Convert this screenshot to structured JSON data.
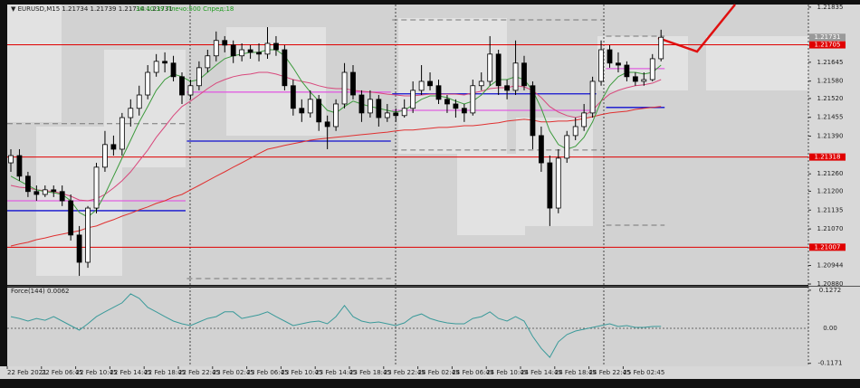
{
  "chart_data": {
    "type": "candlestick",
    "header": "▼ EURUSD,M15  1.21734 1.21739 1.21714 1.21731",
    "status": "36:40:39 Плечо:500 Спред:18",
    "categories": [
      "22 Feb 2021",
      null,
      null,
      null,
      "22 Feb 06:45",
      null,
      null,
      null,
      "22 Feb 10:45",
      null,
      null,
      null,
      "22 Feb 14:45",
      null,
      null,
      null,
      "22 Feb 18:45",
      null,
      null,
      null,
      "22 Feb 22:45",
      null,
      null,
      null,
      "23 Feb 02:45",
      null,
      null,
      null,
      "23 Feb 06:45",
      null,
      null,
      null,
      "23 Feb 10:45",
      null,
      null,
      null,
      "23 Feb 14:45",
      null,
      null,
      null,
      "23 Feb 18:45",
      null,
      null,
      null,
      "23 Feb 22:45",
      null,
      null,
      null,
      "24 Feb 02:45",
      null,
      null,
      null,
      "24 Feb 06:45",
      null,
      null,
      null,
      "24 Feb 10:45",
      null,
      null,
      null,
      "24 Feb 14:45",
      null,
      null,
      null,
      "24 Feb 18:45",
      null,
      null,
      null,
      "24 Feb 22:45",
      null,
      null,
      null,
      "25 Feb 02:45",
      null,
      null,
      null,
      null
    ],
    "open": [
      1.21298,
      1.21323,
      1.21252,
      1.21199,
      1.21189,
      1.21205,
      1.21199,
      1.21167,
      1.21049,
      1.20955,
      1.21142,
      1.21283,
      1.21361,
      1.21345,
      1.21454,
      1.21486,
      1.21532,
      1.2161,
      1.21648,
      1.21642,
      1.21595,
      1.21532,
      1.21564,
      1.21626,
      1.21667,
      1.2172,
      1.21704,
      1.21667,
      1.21688,
      1.21679,
      1.21673,
      1.2171,
      1.21688,
      1.21564,
      1.21486,
      1.2147,
      1.21517,
      1.21439,
      1.21423,
      1.21501,
      1.2161,
      1.21532,
      1.2147,
      1.21517,
      1.21454,
      1.2147,
      1.21461,
      1.21486,
      1.21548,
      1.21579,
      1.21564,
      1.21517,
      1.21501,
      1.21486,
      1.2147,
      1.21564,
      1.21579,
      1.21673,
      1.21564,
      1.21548,
      1.21642,
      1.21564,
      1.21392,
      1.21298,
      1.21142,
      1.21314,
      1.21392,
      1.21423,
      1.2147,
      1.21579,
      1.21688,
      1.21642,
      1.21635,
      1.21595,
      1.21579,
      1.21585,
      1.21657
    ],
    "high": [
      1.21345,
      1.21345,
      1.21267,
      1.2122,
      1.2122,
      1.2122,
      1.2122,
      1.21189,
      1.2108,
      1.21149,
      1.21298,
      1.21408,
      1.21392,
      1.2147,
      1.21517,
      1.21564,
      1.21635,
      1.21673,
      1.21679,
      1.21667,
      1.2161,
      1.21585,
      1.21648,
      1.21688,
      1.21751,
      1.21735,
      1.2172,
      1.2171,
      1.21704,
      1.2171,
      1.21766,
      1.21735,
      1.21704,
      1.21585,
      1.21517,
      1.21548,
      1.21532,
      1.21461,
      1.21517,
      1.21642,
      1.21635,
      1.21548,
      1.21548,
      1.21532,
      1.21501,
      1.21486,
      1.21517,
      1.21579,
      1.21635,
      1.2161,
      1.21585,
      1.21532,
      1.21517,
      1.21501,
      1.21585,
      1.2161,
      1.21735,
      1.21688,
      1.21585,
      1.2172,
      1.21667,
      1.21579,
      1.21423,
      1.21323,
      1.21345,
      1.21408,
      1.21454,
      1.21501,
      1.21595,
      1.2172,
      1.21704,
      1.21679,
      1.21648,
      1.2161,
      1.2161,
      1.21673,
      1.21757
    ],
    "low": [
      1.21267,
      1.21236,
      1.2118,
      1.21167,
      1.2118,
      1.2118,
      1.21149,
      1.2103,
      1.20908,
      1.20936,
      1.21124,
      1.21267,
      1.21323,
      1.21323,
      1.21423,
      1.21461,
      1.21517,
      1.21595,
      1.2161,
      1.21579,
      1.21501,
      1.21517,
      1.21548,
      1.2161,
      1.21648,
      1.21679,
      1.21642,
      1.21648,
      1.21657,
      1.21648,
      1.21657,
      1.21667,
      1.21548,
      1.21461,
      1.21439,
      1.21454,
      1.21408,
      1.21345,
      1.21408,
      1.21486,
      1.21517,
      1.21439,
      1.21454,
      1.21423,
      1.21439,
      1.21439,
      1.21454,
      1.2147,
      1.21532,
      1.21548,
      1.21501,
      1.2147,
      1.21454,
      1.21439,
      1.21461,
      1.21548,
      1.21564,
      1.21532,
      1.21517,
      1.21532,
      1.21548,
      1.21345,
      1.21267,
      1.2108,
      1.21124,
      1.21298,
      1.21376,
      1.21408,
      1.21454,
      1.21564,
      1.21626,
      1.2161,
      1.21579,
      1.21564,
      1.21564,
      1.21579,
      1.21648
    ],
    "close": [
      1.21323,
      1.21252,
      1.21199,
      1.21189,
      1.21205,
      1.21199,
      1.21167,
      1.21049,
      1.20955,
      1.21142,
      1.21283,
      1.21361,
      1.21345,
      1.21454,
      1.21486,
      1.21532,
      1.2161,
      1.21648,
      1.21642,
      1.21595,
      1.21532,
      1.21564,
      1.21626,
      1.21667,
      1.2172,
      1.21704,
      1.21667,
      1.21688,
      1.21679,
      1.21673,
      1.2171,
      1.21688,
      1.21564,
      1.21486,
      1.2147,
      1.21517,
      1.21439,
      1.21423,
      1.21501,
      1.2161,
      1.21532,
      1.2147,
      1.21517,
      1.21454,
      1.2147,
      1.21461,
      1.21486,
      1.21548,
      1.21579,
      1.21564,
      1.21517,
      1.21501,
      1.21486,
      1.2147,
      1.21564,
      1.21579,
      1.21673,
      1.21564,
      1.21548,
      1.21642,
      1.21564,
      1.21392,
      1.21298,
      1.21142,
      1.21314,
      1.21392,
      1.21423,
      1.2147,
      1.21579,
      1.21688,
      1.21642,
      1.21635,
      1.21595,
      1.21579,
      1.21585,
      1.21657,
      1.21731
    ],
    "candle_color": "#000000",
    "series": [
      {
        "color": "#e03030",
        "values": [
          1.21011,
          1.21018,
          1.21024,
          1.21033,
          1.21039,
          1.21046,
          1.21052,
          1.21058,
          1.21064,
          1.21074,
          1.2108,
          1.21092,
          1.21102,
          1.21114,
          1.21124,
          1.21136,
          1.21146,
          1.21158,
          1.21167,
          1.2118,
          1.21189,
          1.21205,
          1.2122,
          1.21236,
          1.21252,
          1.21267,
          1.21283,
          1.21298,
          1.21314,
          1.2133,
          1.21345,
          1.21351,
          1.21358,
          1.21364,
          1.2137,
          1.21376,
          1.2138,
          1.21383,
          1.21386,
          1.21389,
          1.21392,
          1.21395,
          1.21398,
          1.21401,
          1.21404,
          1.21408,
          1.21411,
          1.21411,
          1.21414,
          1.21417,
          1.2142,
          1.2142,
          1.21423,
          1.21426,
          1.21426,
          1.21429,
          1.21433,
          1.21436,
          1.21442,
          1.21445,
          1.21448,
          1.21445,
          1.21439,
          1.21439,
          1.21442,
          1.21442,
          1.21445,
          1.21451,
          1.21457,
          1.21464,
          1.2147,
          1.21473,
          1.21476,
          1.21482,
          1.21486,
          1.21489,
          1.21492
        ]
      },
      {
        "color": "#d8487c",
        "values": [
          1.2122,
          1.21214,
          1.21211,
          1.21205,
          1.21202,
          1.21199,
          1.21192,
          1.21183,
          1.2117,
          1.21167,
          1.21174,
          1.21189,
          1.21211,
          1.21236,
          1.21267,
          1.21305,
          1.21342,
          1.21386,
          1.21423,
          1.21461,
          1.21492,
          1.21511,
          1.21532,
          1.21554,
          1.21573,
          1.21585,
          1.21595,
          1.21601,
          1.21604,
          1.2161,
          1.2161,
          1.21604,
          1.21595,
          1.21585,
          1.21579,
          1.21573,
          1.21564,
          1.21557,
          1.21554,
          1.21554,
          1.21548,
          1.21545,
          1.21542,
          1.21539,
          1.21535,
          1.21532,
          1.21529,
          1.21529,
          1.21532,
          1.21535,
          1.21535,
          1.21535,
          1.21535,
          1.21532,
          1.21539,
          1.21545,
          1.21554,
          1.21557,
          1.21557,
          1.21564,
          1.2156,
          1.21548,
          1.21523,
          1.21492,
          1.21473,
          1.21461,
          1.21454,
          1.21461,
          1.21479,
          1.21511,
          1.21535,
          1.21548,
          1.21557,
          1.21564,
          1.21567,
          1.21573,
          1.21585
        ]
      },
      {
        "color": "#3c9a3c",
        "values": [
          1.21252,
          1.21236,
          1.2122,
          1.21205,
          1.21199,
          1.21195,
          1.21189,
          1.21167,
          1.21127,
          1.21111,
          1.21136,
          1.21189,
          1.21252,
          1.21314,
          1.21376,
          1.21439,
          1.21492,
          1.21548,
          1.21585,
          1.21604,
          1.21595,
          1.21579,
          1.21585,
          1.2161,
          1.21635,
          1.21657,
          1.21667,
          1.21673,
          1.21679,
          1.21679,
          1.21688,
          1.21688,
          1.21667,
          1.21626,
          1.21579,
          1.21542,
          1.21511,
          1.21479,
          1.2147,
          1.21492,
          1.21511,
          1.21501,
          1.21492,
          1.21486,
          1.21479,
          1.21473,
          1.21479,
          1.21498,
          1.21517,
          1.21529,
          1.21529,
          1.21523,
          1.21511,
          1.21501,
          1.21511,
          1.21532,
          1.21564,
          1.21585,
          1.21585,
          1.21595,
          1.21585,
          1.21548,
          1.21486,
          1.21408,
          1.21361,
          1.21345,
          1.21355,
          1.21386,
          1.21439,
          1.21511,
          1.21564,
          1.21595,
          1.2161,
          1.2161,
          1.21604,
          1.2161,
          1.21635
        ]
      }
    ],
    "levels": [
      {
        "value": 1.21705,
        "color": "#e00000"
      },
      {
        "value": 1.21318,
        "color": "#e00000"
      },
      {
        "value": 1.21007,
        "color": "#e00000"
      }
    ],
    "segments": [
      {
        "value": 1.21133,
        "color": "#1010d0",
        "dashed": false,
        "from": 0,
        "to": 20
      },
      {
        "value": 1.21373,
        "color": "#1010d0",
        "dashed": false,
        "from": 21,
        "to": 44
      },
      {
        "value": 1.21536,
        "color": "#1010d0",
        "dashed": false,
        "from": 45,
        "to": 68
      },
      {
        "value": 1.21489,
        "color": "#1010d0",
        "dashed": false,
        "from": 70,
        "to": 76
      },
      {
        "value": 1.21167,
        "color": "#e060e0",
        "dashed": false,
        "from": 0,
        "to": 20
      },
      {
        "value": 1.21542,
        "color": "#e060e0",
        "dashed": false,
        "from": 21,
        "to": 44
      },
      {
        "value": 1.21479,
        "color": "#e060e0",
        "dashed": false,
        "from": 45,
        "to": 68
      },
      {
        "value": 1.21623,
        "color": "#e060e0",
        "dashed": false,
        "from": 70,
        "to": 76
      },
      {
        "value": 1.21433,
        "color": "#777777",
        "dashed": true,
        "from": 0,
        "to": 20
      },
      {
        "value": 1.20899,
        "color": "#777777",
        "dashed": true,
        "from": 21,
        "to": 44
      },
      {
        "value": 1.21791,
        "color": "#777777",
        "dashed": true,
        "from": 45,
        "to": 69
      },
      {
        "value": 1.21342,
        "color": "#777777",
        "dashed": true,
        "from": 45,
        "to": 69
      },
      {
        "value": 1.21083,
        "color": "#777777",
        "dashed": true,
        "from": 70,
        "to": 76
      },
      {
        "value": 1.21735,
        "color": "#777777",
        "dashed": true,
        "from": 70,
        "to": 76
      }
    ],
    "ylim": [
      1.20877,
      1.21844
    ],
    "yticks": [
      1.21835,
      1.21645,
      {
        "value": 1.2158,
        "label": "1.21580"
      },
      {
        "value": 1.2152,
        "label": "1.21520"
      },
      1.21455,
      {
        "value": 1.2139,
        "label": "1.21390"
      },
      {
        "value": 1.2126,
        "label": "1.21260"
      },
      {
        "value": 1.212,
        "label": "1.21200"
      },
      1.21135,
      {
        "value": 1.2107,
        "label": "1.21070"
      },
      1.20944,
      {
        "value": 1.2088,
        "label": "1.20880"
      }
    ],
    "indicator": {
      "title": "Force(144) 0.0062",
      "color": "#3a9a9a",
      "values": [
        0.039,
        0.033,
        0.024,
        0.033,
        0.027,
        0.039,
        0.024,
        0.009,
        -0.006,
        0.015,
        0.039,
        0.055,
        0.07,
        0.085,
        0.115,
        0.1,
        0.07,
        0.055,
        0.039,
        0.024,
        0.015,
        0.009,
        0.021,
        0.033,
        0.039,
        0.055,
        0.055,
        0.033,
        0.039,
        0.045,
        0.055,
        0.039,
        0.024,
        0.009,
        0.015,
        0.021,
        0.024,
        0.015,
        0.039,
        0.076,
        0.039,
        0.024,
        0.018,
        0.021,
        0.015,
        0.009,
        0.018,
        0.039,
        0.048,
        0.033,
        0.024,
        0.018,
        0.015,
        0.015,
        0.033,
        0.039,
        0.055,
        0.033,
        0.024,
        0.039,
        0.024,
        -0.027,
        -0.067,
        -0.097,
        -0.045,
        -0.021,
        -0.009,
        -0.003,
        0.003,
        0.009,
        0.015,
        0.006,
        0.009,
        0.003,
        0.003,
        0.006,
        0.0062
      ],
      "ylim": [
        -0.127,
        0.136
      ],
      "yticks": [
        0.1272,
        {
          "value": 0,
          "label": "0.00"
        },
        -0.1171
      ]
    }
  }
}
